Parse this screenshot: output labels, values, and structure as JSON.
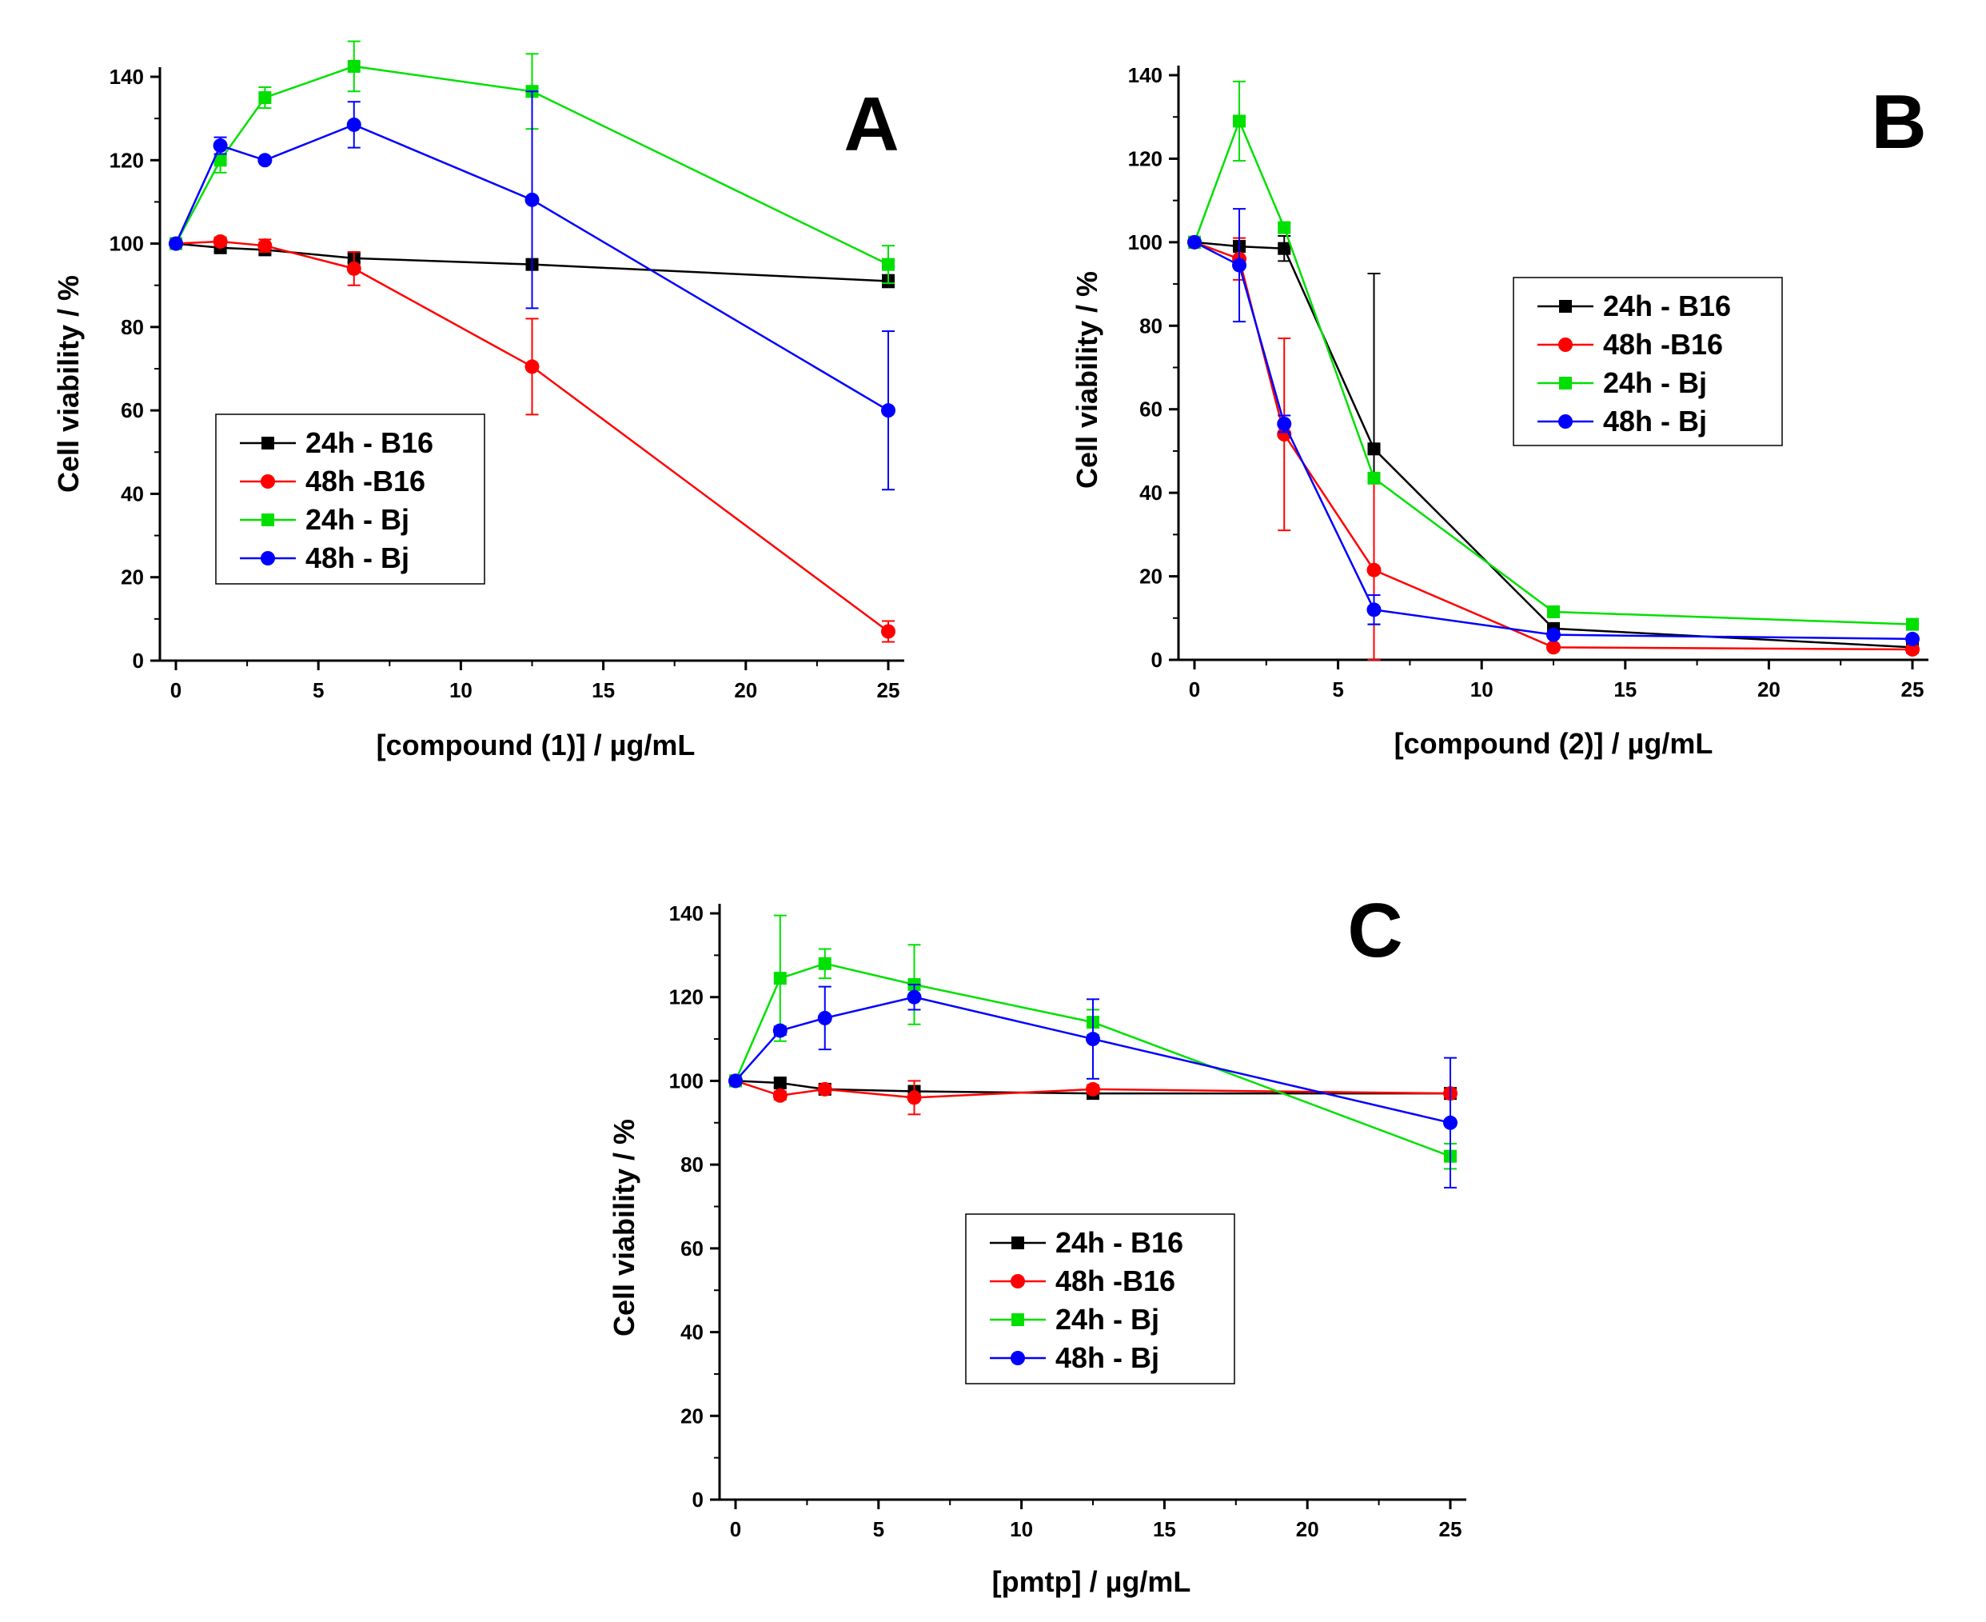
{
  "chart_data": [
    {
      "type": "line",
      "panel": "A",
      "xlabel": "[compound (1)]  /  µg/mL",
      "ylabel": "Cell viability  /  %",
      "xlim": [
        0,
        25
      ],
      "ylim": [
        0,
        140
      ],
      "xticks": [
        0,
        5,
        10,
        15,
        20,
        25
      ],
      "yticks": [
        0,
        20,
        40,
        60,
        80,
        100,
        120,
        140
      ],
      "legend_position": "bottom-left",
      "x": [
        0,
        1.56,
        3.125,
        6.25,
        12.5,
        25
      ],
      "series": [
        {
          "name": "24h - B16",
          "color": "#000000",
          "marker": "square",
          "values": [
            100,
            99,
            98.5,
            96.5,
            95,
            91
          ],
          "errors": [
            0,
            1,
            1,
            1,
            1,
            1.5
          ]
        },
        {
          "name": "48h -B16",
          "color": "#ff0000",
          "marker": "circle",
          "values": [
            100,
            100.5,
            99.5,
            94,
            70.5,
            7
          ],
          "errors": [
            0,
            1,
            1.5,
            4,
            11.5,
            2.5
          ]
        },
        {
          "name": "24h - Bj",
          "color": "#00e000",
          "marker": "square",
          "values": [
            100,
            120,
            135,
            142.5,
            136.5,
            95
          ],
          "errors": [
            0,
            3,
            2.5,
            6,
            9,
            4.5
          ]
        },
        {
          "name": "48h - Bj",
          "color": "#0000ff",
          "marker": "circle",
          "values": [
            100,
            123.5,
            120,
            128.5,
            110.5,
            60
          ],
          "errors": [
            0,
            2,
            0,
            5.5,
            26,
            19
          ]
        }
      ]
    },
    {
      "type": "line",
      "panel": "B",
      "xlabel": "[compound (2)]  /  µg/mL",
      "ylabel": "Cell viability  /  %",
      "xlim": [
        0,
        25
      ],
      "ylim": [
        0,
        140
      ],
      "xticks": [
        0,
        5,
        10,
        15,
        20,
        25
      ],
      "yticks": [
        0,
        20,
        40,
        60,
        80,
        100,
        120,
        140
      ],
      "legend_position": "right",
      "x": [
        0,
        1.56,
        3.125,
        6.25,
        12.5,
        25
      ],
      "series": [
        {
          "name": "24h - B16",
          "color": "#000000",
          "marker": "square",
          "values": [
            100,
            99,
            98.5,
            50.5,
            7.5,
            3
          ],
          "errors": [
            0,
            1,
            3,
            42,
            1,
            1
          ]
        },
        {
          "name": "48h -B16",
          "color": "#ff0000",
          "marker": "circle",
          "values": [
            100,
            96,
            54,
            21.5,
            3,
            2.5
          ],
          "errors": [
            0,
            5,
            23,
            21.5,
            0.5,
            0.5
          ]
        },
        {
          "name": "24h - Bj",
          "color": "#00e000",
          "marker": "square",
          "values": [
            100,
            129,
            103.5,
            43.5,
            11.5,
            8.5
          ],
          "errors": [
            0,
            9.5,
            1,
            0,
            1,
            1
          ]
        },
        {
          "name": "48h - Bj",
          "color": "#0000ff",
          "marker": "circle",
          "values": [
            100,
            94.5,
            56.5,
            12,
            6,
            5
          ],
          "errors": [
            0,
            13.5,
            2,
            3.5,
            0.5,
            0.5
          ]
        }
      ]
    },
    {
      "type": "line",
      "panel": "C",
      "xlabel": "[pmtp]  /  µg/mL",
      "ylabel": "Cell viability  /  %",
      "xlim": [
        0,
        25
      ],
      "ylim": [
        0,
        140
      ],
      "xticks": [
        0,
        5,
        10,
        15,
        20,
        25
      ],
      "yticks": [
        0,
        20,
        40,
        60,
        80,
        100,
        120,
        140
      ],
      "legend_position": "bottom-center",
      "x": [
        0,
        1.56,
        3.125,
        6.25,
        12.5,
        25
      ],
      "series": [
        {
          "name": "24h - B16",
          "color": "#000000",
          "marker": "square",
          "values": [
            100,
            99.5,
            98,
            97.5,
            97,
            97
          ],
          "errors": [
            0,
            1,
            1,
            1,
            1,
            1
          ]
        },
        {
          "name": "48h -B16",
          "color": "#ff0000",
          "marker": "circle",
          "values": [
            100,
            96.5,
            98,
            96,
            98,
            97
          ],
          "errors": [
            0,
            1,
            1,
            4,
            1,
            1
          ]
        },
        {
          "name": "24h - Bj",
          "color": "#00e000",
          "marker": "square",
          "values": [
            100,
            124.5,
            128,
            123,
            114,
            82
          ],
          "errors": [
            0,
            15,
            3.5,
            9.5,
            3,
            3
          ]
        },
        {
          "name": "48h - Bj",
          "color": "#0000ff",
          "marker": "circle",
          "values": [
            100,
            112,
            115,
            120,
            110,
            90
          ],
          "errors": [
            0,
            1,
            7.5,
            3,
            9.5,
            15.5
          ]
        }
      ]
    }
  ]
}
